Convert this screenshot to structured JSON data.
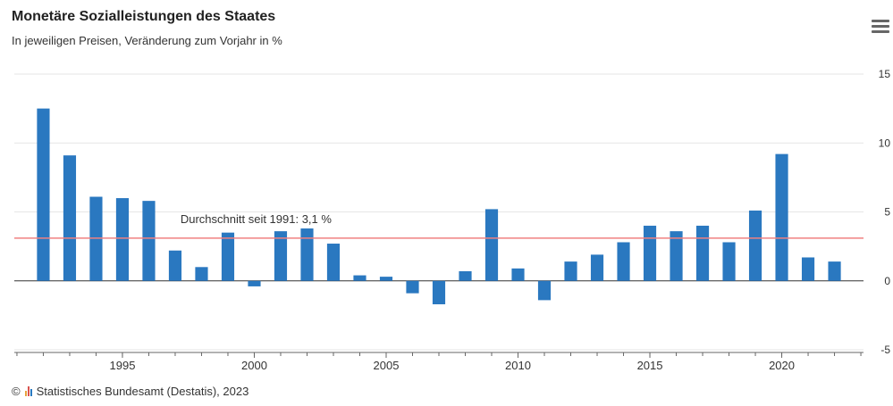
{
  "header": {
    "title": "Monetäre Sozialleistungen des Staates",
    "subtitle": "In jeweiligen Preisen, Veränderung zum Vorjahr in %"
  },
  "footer": {
    "copyright_symbol": "©",
    "credit": "Statistisches Bundesamt (Destatis), 2023"
  },
  "icons": {
    "menu": "hamburger-menu-icon",
    "logo": "destatis-logo-icon"
  },
  "colors": {
    "bar": "#2a78c0",
    "average_line": "#f08080",
    "grid": "#e6e6e6",
    "axis": "#666666",
    "logo": [
      "#e8a33d",
      "#d9534f",
      "#2a78c0"
    ]
  },
  "chart_data": {
    "type": "bar",
    "title": "Monetäre Sozialleistungen des Staates",
    "subtitle": "In jeweiligen Preisen, Veränderung zum Vorjahr in %",
    "x": [
      1992,
      1993,
      1994,
      1995,
      1996,
      1997,
      1998,
      1999,
      2000,
      2001,
      2002,
      2003,
      2004,
      2005,
      2006,
      2007,
      2008,
      2009,
      2010,
      2011,
      2012,
      2013,
      2014,
      2015,
      2016,
      2017,
      2018,
      2019,
      2020,
      2021,
      2022
    ],
    "values": [
      12.5,
      9.1,
      6.1,
      6.0,
      5.8,
      2.2,
      1.0,
      3.5,
      -0.4,
      3.6,
      3.8,
      2.7,
      0.4,
      0.3,
      -0.9,
      -1.7,
      0.7,
      5.2,
      0.9,
      -1.4,
      1.4,
      1.9,
      2.8,
      4.0,
      3.6,
      4.0,
      2.8,
      5.1,
      9.2,
      1.7,
      1.4
    ],
    "xticks": [
      1995,
      2000,
      2005,
      2010,
      2015,
      2020
    ],
    "yticks": [
      -5,
      0,
      5,
      10,
      15
    ],
    "ylim": [
      -5,
      15
    ],
    "xlim": [
      1990.9,
      2023.1
    ],
    "yaxis_position": "right",
    "grid": true,
    "legend": "none",
    "annotations": [
      {
        "type": "hline",
        "y": 3.1,
        "label": "Durchschnitt seit 1991: 3,1 %"
      }
    ]
  }
}
